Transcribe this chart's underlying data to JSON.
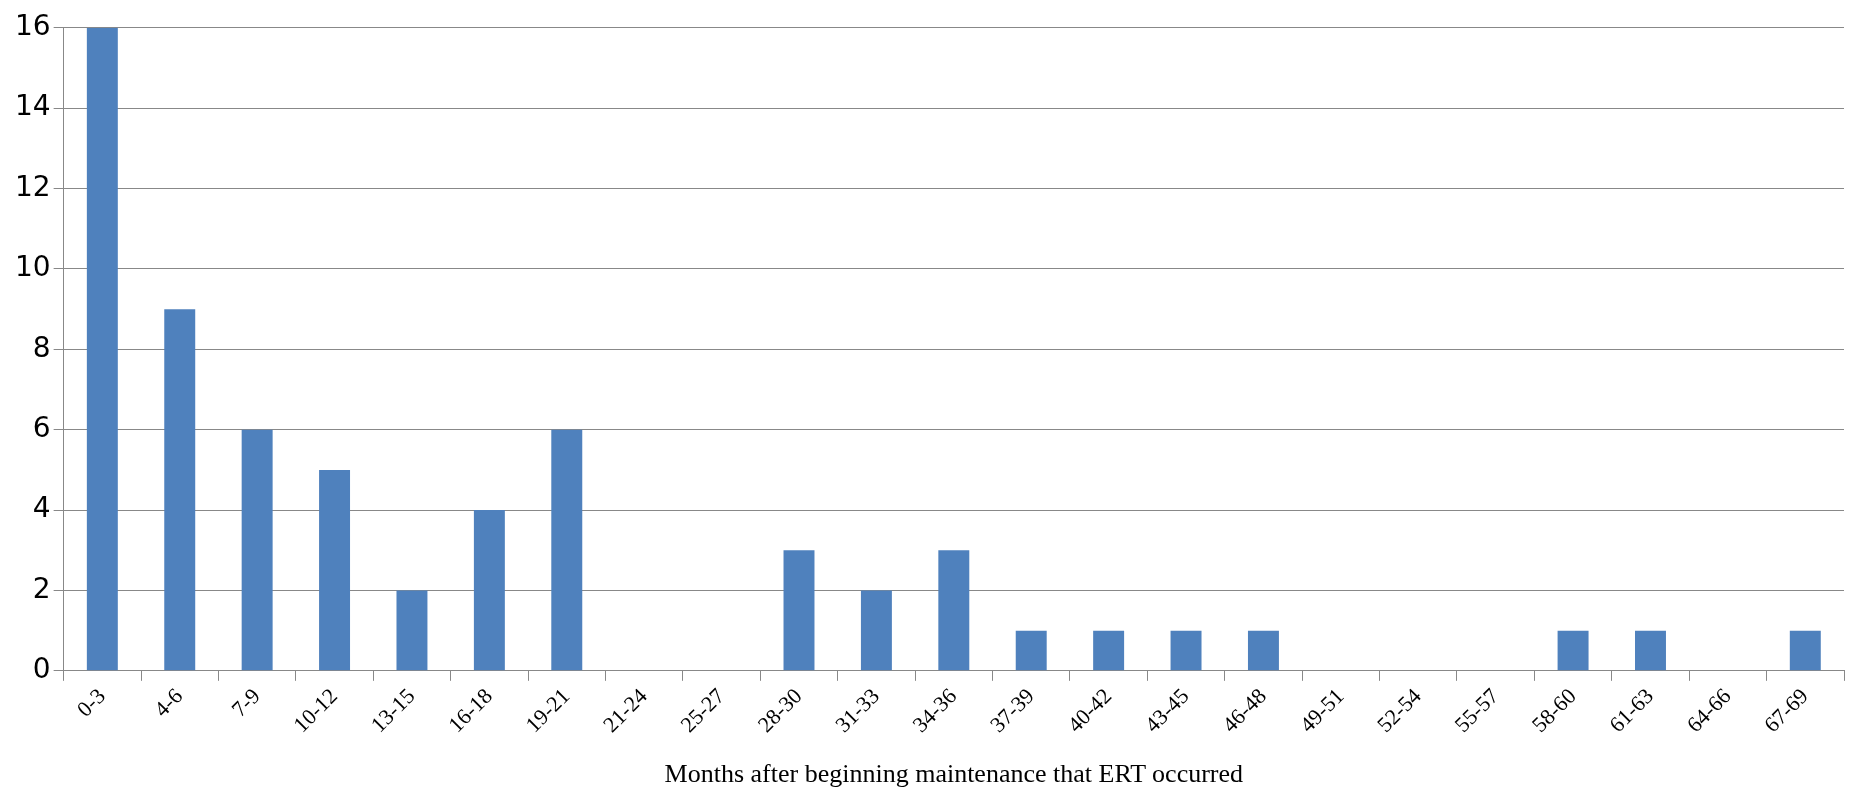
{
  "chart_data": {
    "type": "bar",
    "xlabel": "Months after beginning maintenance that ERT occurred",
    "categories": [
      "0-3",
      "4-6",
      "7-9",
      "10-12",
      "13-15",
      "16-18",
      "19-21",
      "21-24",
      "25-27",
      "28-30",
      "31-33",
      "34-36",
      "37-39",
      "40-42",
      "43-45",
      "46-48",
      "49-51",
      "52-54",
      "55-57",
      "58-60",
      "61-63",
      "64-66",
      "67-69"
    ],
    "values": [
      16,
      9,
      6,
      5,
      2,
      4,
      6,
      0,
      0,
      3,
      2,
      3,
      1,
      1,
      1,
      1,
      0,
      0,
      0,
      1,
      1,
      0,
      1
    ],
    "color": "#4f81bd",
    "ylim": [
      0,
      16
    ],
    "yticks": [
      0,
      2,
      4,
      6,
      8,
      10,
      12,
      14,
      16
    ],
    "grid": "y",
    "legend": false
  }
}
